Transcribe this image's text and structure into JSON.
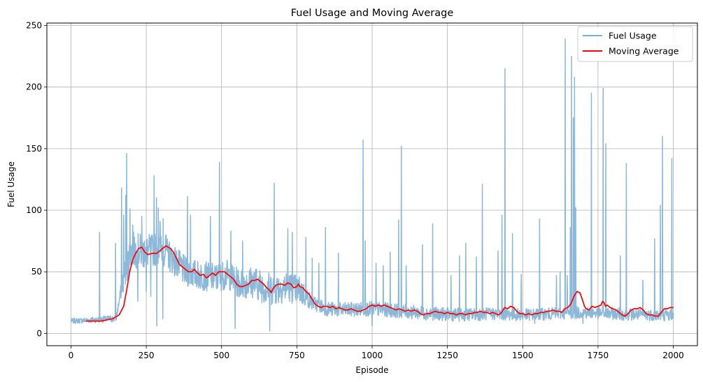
{
  "chart_data": {
    "type": "line",
    "title": "Fuel Usage and Moving Average",
    "xlabel": "Episode",
    "ylabel": "Fuel Usage",
    "xlim": [
      -80,
      2080
    ],
    "ylim": [
      -10,
      252
    ],
    "xticks": [
      0,
      250,
      500,
      750,
      1000,
      1250,
      1500,
      1750,
      2000
    ],
    "yticks": [
      0,
      50,
      100,
      150,
      200,
      250
    ],
    "grid": true,
    "legend_position": "top-right",
    "series": [
      {
        "name": "Fuel Usage",
        "color": "#7fb0d5",
        "kind": "raw",
        "baseline": [
          [
            0,
            10
          ],
          [
            150,
            12
          ],
          [
            170,
            40
          ],
          [
            200,
            68
          ],
          [
            250,
            66
          ],
          [
            300,
            70
          ],
          [
            340,
            60
          ],
          [
            380,
            50
          ],
          [
            430,
            47
          ],
          [
            480,
            45
          ],
          [
            520,
            48
          ],
          [
            560,
            40
          ],
          [
            600,
            42
          ],
          [
            660,
            36
          ],
          [
            720,
            38
          ],
          [
            760,
            35
          ],
          [
            800,
            25
          ],
          [
            850,
            20
          ],
          [
            900,
            19
          ],
          [
            1000,
            20
          ],
          [
            1100,
            18
          ],
          [
            1200,
            16
          ],
          [
            1300,
            15
          ],
          [
            1400,
            16
          ],
          [
            1500,
            15
          ],
          [
            1600,
            16
          ],
          [
            1700,
            17
          ],
          [
            1800,
            16
          ],
          [
            1900,
            15
          ],
          [
            2000,
            15
          ]
        ],
        "noise": [
          [
            0,
            2
          ],
          [
            160,
            3
          ],
          [
            180,
            15
          ],
          [
            250,
            14
          ],
          [
            400,
            12
          ],
          [
            550,
            12
          ],
          [
            650,
            14
          ],
          [
            760,
            12
          ],
          [
            800,
            6
          ],
          [
            1000,
            6
          ],
          [
            1500,
            5
          ],
          [
            2000,
            5
          ]
        ],
        "spikes": [
          [
            95,
            82
          ],
          [
            148,
            73
          ],
          [
            168,
            118
          ],
          [
            175,
            96
          ],
          [
            182,
            112
          ],
          [
            185,
            146
          ],
          [
            196,
            101
          ],
          [
            205,
            88
          ],
          [
            211,
            78
          ],
          [
            222,
            26
          ],
          [
            235,
            95
          ],
          [
            244,
            75
          ],
          [
            250,
            74
          ],
          [
            276,
            128
          ],
          [
            284,
            110
          ],
          [
            290,
            102
          ],
          [
            296,
            91
          ],
          [
            306,
            93
          ],
          [
            316,
            80
          ],
          [
            323,
            72
          ],
          [
            387,
            111
          ],
          [
            397,
            96
          ],
          [
            463,
            95
          ],
          [
            493,
            139
          ],
          [
            531,
            83
          ],
          [
            570,
            75
          ],
          [
            675,
            122
          ],
          [
            720,
            85
          ],
          [
            735,
            82
          ],
          [
            780,
            78
          ],
          [
            801,
            61
          ],
          [
            823,
            57
          ],
          [
            845,
            86
          ],
          [
            888,
            65
          ],
          [
            970,
            157
          ],
          [
            977,
            75
          ],
          [
            1013,
            57
          ],
          [
            1037,
            55
          ],
          [
            1060,
            66
          ],
          [
            1088,
            92
          ],
          [
            1097,
            152
          ],
          [
            1113,
            55
          ],
          [
            1167,
            72
          ],
          [
            1201,
            89
          ],
          [
            1262,
            47
          ],
          [
            1290,
            63
          ],
          [
            1311,
            73
          ],
          [
            1346,
            62
          ],
          [
            1366,
            121
          ],
          [
            1418,
            67
          ],
          [
            1431,
            96
          ],
          [
            1441,
            215
          ],
          [
            1466,
            81
          ],
          [
            1495,
            48
          ],
          [
            1540,
            61
          ],
          [
            1556,
            93
          ],
          [
            1612,
            47
          ],
          [
            1624,
            50
          ],
          [
            1641,
            239
          ],
          [
            1648,
            47
          ],
          [
            1658,
            86
          ],
          [
            1662,
            225
          ],
          [
            1668,
            175
          ],
          [
            1672,
            208
          ],
          [
            1676,
            102
          ],
          [
            1728,
            195
          ],
          [
            1767,
            199
          ],
          [
            1776,
            154
          ],
          [
            1824,
            63
          ],
          [
            1844,
            138
          ],
          [
            1899,
            43
          ],
          [
            1938,
            77
          ],
          [
            1957,
            104
          ],
          [
            1964,
            160
          ],
          [
            1995,
            142
          ],
          [
            250,
            34
          ],
          [
            265,
            30
          ],
          [
            285,
            6
          ],
          [
            305,
            12
          ],
          [
            545,
            4
          ],
          [
            660,
            2
          ],
          [
            1000,
            6
          ],
          [
            1540,
            8
          ],
          [
            1700,
            8
          ]
        ]
      },
      {
        "name": "Moving Average",
        "color": "#ff0000",
        "kind": "line",
        "points": [
          [
            50,
            10
          ],
          [
            100,
            10
          ],
          [
            120,
            11
          ],
          [
            140,
            12
          ],
          [
            160,
            15
          ],
          [
            175,
            22
          ],
          [
            185,
            35
          ],
          [
            195,
            50
          ],
          [
            205,
            60
          ],
          [
            215,
            65
          ],
          [
            225,
            69
          ],
          [
            235,
            70
          ],
          [
            245,
            66
          ],
          [
            255,
            64
          ],
          [
            270,
            65
          ],
          [
            285,
            65
          ],
          [
            300,
            68
          ],
          [
            315,
            71
          ],
          [
            330,
            69
          ],
          [
            340,
            66
          ],
          [
            350,
            61
          ],
          [
            360,
            56
          ],
          [
            370,
            54
          ],
          [
            380,
            52
          ],
          [
            390,
            50
          ],
          [
            400,
            50
          ],
          [
            410,
            52
          ],
          [
            420,
            49
          ],
          [
            430,
            47
          ],
          [
            440,
            48
          ],
          [
            450,
            45
          ],
          [
            460,
            47
          ],
          [
            470,
            49
          ],
          [
            480,
            47
          ],
          [
            490,
            50
          ],
          [
            500,
            50
          ],
          [
            510,
            50
          ],
          [
            520,
            48
          ],
          [
            530,
            46
          ],
          [
            540,
            44
          ],
          [
            550,
            40
          ],
          [
            560,
            38
          ],
          [
            570,
            38
          ],
          [
            580,
            39
          ],
          [
            590,
            40
          ],
          [
            600,
            43
          ],
          [
            610,
            43
          ],
          [
            620,
            44
          ],
          [
            630,
            42
          ],
          [
            640,
            40
          ],
          [
            650,
            37
          ],
          [
            660,
            35
          ],
          [
            665,
            33
          ],
          [
            670,
            36
          ],
          [
            680,
            39
          ],
          [
            690,
            40
          ],
          [
            700,
            40
          ],
          [
            710,
            39
          ],
          [
            720,
            41
          ],
          [
            730,
            40
          ],
          [
            740,
            37
          ],
          [
            750,
            38
          ],
          [
            755,
            40
          ],
          [
            760,
            38
          ],
          [
            770,
            37
          ],
          [
            780,
            34
          ],
          [
            790,
            32
          ],
          [
            800,
            28
          ],
          [
            810,
            24
          ],
          [
            820,
            22
          ],
          [
            830,
            21
          ],
          [
            840,
            22
          ],
          [
            850,
            22
          ],
          [
            860,
            21
          ],
          [
            870,
            22
          ],
          [
            880,
            20
          ],
          [
            890,
            21
          ],
          [
            900,
            20
          ],
          [
            910,
            19
          ],
          [
            920,
            19
          ],
          [
            930,
            20
          ],
          [
            940,
            19
          ],
          [
            950,
            18
          ],
          [
            960,
            18
          ],
          [
            970,
            19
          ],
          [
            980,
            20
          ],
          [
            990,
            22
          ],
          [
            1000,
            23
          ],
          [
            1010,
            22
          ],
          [
            1020,
            23
          ],
          [
            1030,
            22
          ],
          [
            1040,
            23
          ],
          [
            1050,
            22
          ],
          [
            1060,
            21
          ],
          [
            1070,
            20
          ],
          [
            1080,
            19
          ],
          [
            1090,
            20
          ],
          [
            1100,
            19
          ],
          [
            1110,
            18
          ],
          [
            1120,
            19
          ],
          [
            1130,
            18
          ],
          [
            1140,
            19
          ],
          [
            1150,
            18
          ],
          [
            1160,
            16
          ],
          [
            1170,
            15
          ],
          [
            1180,
            16
          ],
          [
            1190,
            16
          ],
          [
            1200,
            17
          ],
          [
            1210,
            18
          ],
          [
            1220,
            17
          ],
          [
            1230,
            17
          ],
          [
            1240,
            16
          ],
          [
            1250,
            17
          ],
          [
            1260,
            16
          ],
          [
            1270,
            16
          ],
          [
            1280,
            15
          ],
          [
            1290,
            16
          ],
          [
            1300,
            16
          ],
          [
            1310,
            15
          ],
          [
            1320,
            16
          ],
          [
            1330,
            16
          ],
          [
            1340,
            17
          ],
          [
            1350,
            17
          ],
          [
            1360,
            18
          ],
          [
            1370,
            17
          ],
          [
            1380,
            17
          ],
          [
            1390,
            16
          ],
          [
            1400,
            17
          ],
          [
            1410,
            16
          ],
          [
            1420,
            15
          ],
          [
            1430,
            17
          ],
          [
            1440,
            21
          ],
          [
            1450,
            20
          ],
          [
            1460,
            22
          ],
          [
            1470,
            21
          ],
          [
            1480,
            18
          ],
          [
            1490,
            16
          ],
          [
            1500,
            16
          ],
          [
            1510,
            15
          ],
          [
            1520,
            16
          ],
          [
            1530,
            15
          ],
          [
            1540,
            16
          ],
          [
            1550,
            16
          ],
          [
            1560,
            17
          ],
          [
            1570,
            17
          ],
          [
            1580,
            18
          ],
          [
            1590,
            18
          ],
          [
            1600,
            19
          ],
          [
            1610,
            18
          ],
          [
            1620,
            18
          ],
          [
            1630,
            17
          ],
          [
            1640,
            20
          ],
          [
            1650,
            21
          ],
          [
            1660,
            24
          ],
          [
            1670,
            30
          ],
          [
            1680,
            34
          ],
          [
            1690,
            33
          ],
          [
            1700,
            26
          ],
          [
            1705,
            22
          ],
          [
            1710,
            20
          ],
          [
            1720,
            19
          ],
          [
            1730,
            22
          ],
          [
            1740,
            21
          ],
          [
            1750,
            22
          ],
          [
            1760,
            23
          ],
          [
            1765,
            26
          ],
          [
            1770,
            25
          ],
          [
            1775,
            22
          ],
          [
            1780,
            23
          ],
          [
            1790,
            21
          ],
          [
            1800,
            20
          ],
          [
            1810,
            19
          ],
          [
            1820,
            17
          ],
          [
            1830,
            15
          ],
          [
            1840,
            14
          ],
          [
            1850,
            16
          ],
          [
            1860,
            19
          ],
          [
            1870,
            20
          ],
          [
            1880,
            20
          ],
          [
            1890,
            21
          ],
          [
            1900,
            19
          ],
          [
            1910,
            16
          ],
          [
            1920,
            15
          ],
          [
            1930,
            15
          ],
          [
            1940,
            14
          ],
          [
            1950,
            14
          ],
          [
            1960,
            17
          ],
          [
            1970,
            20
          ],
          [
            1980,
            20
          ],
          [
            1990,
            21
          ],
          [
            2000,
            21
          ]
        ]
      }
    ]
  }
}
